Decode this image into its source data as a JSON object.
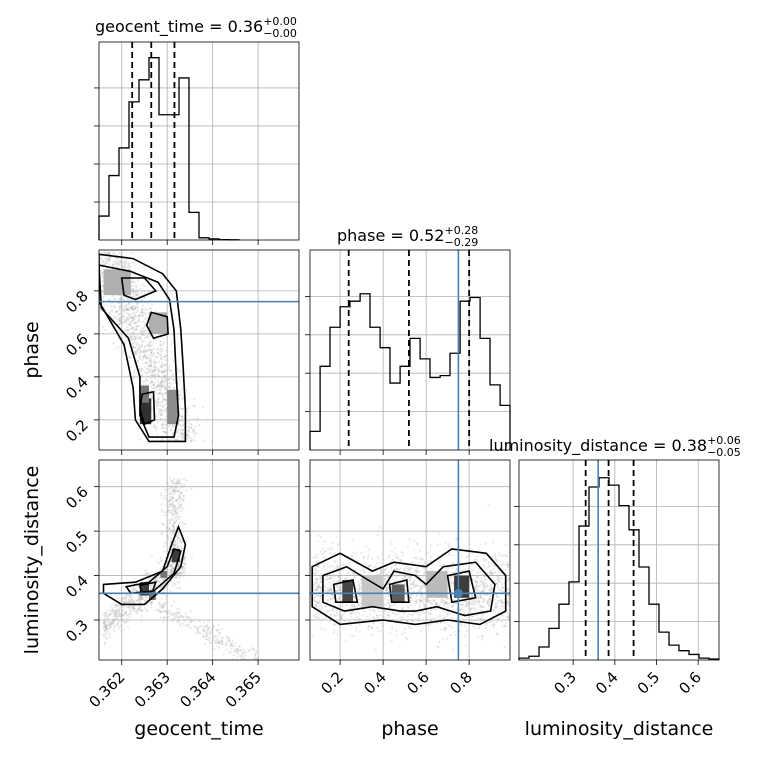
{
  "chart_data": {
    "type": "corner",
    "parameters": [
      "geocent_time",
      "phase",
      "luminosity_distance"
    ],
    "truths": {
      "geocent_time": null,
      "phase": 0.75,
      "luminosity_distance": 0.36
    },
    "colors": {
      "truth": "#4682b4",
      "line": "#000000",
      "grid": "#b0b0b0"
    },
    "axes": {
      "geocent_time": {
        "range": [
          0.3615,
          0.3659
        ],
        "ticks": [
          0.362,
          0.363,
          0.364,
          0.365
        ],
        "tick_labels": [
          "0.362",
          "0.363",
          "0.364",
          "0.365"
        ]
      },
      "phase": {
        "range": [
          0.06,
          0.99
        ],
        "ticks": [
          0.2,
          0.4,
          0.6,
          0.8
        ],
        "tick_labels": [
          "0.2",
          "0.4",
          "0.6",
          "0.8"
        ]
      },
      "luminosity_distance": {
        "range": [
          0.21,
          0.66
        ],
        "ticks": [
          0.3,
          0.4,
          0.5,
          0.6
        ],
        "tick_labels": [
          "0.3",
          "0.4",
          "0.5",
          "0.6"
        ]
      },
      "ld_hist_x": {
        "range": [
          0.17,
          0.65
        ],
        "ticks": [
          0.3,
          0.4,
          0.5,
          0.6
        ],
        "tick_labels": [
          "0.3",
          "0.4",
          "0.5",
          "0.6"
        ]
      }
    },
    "axis_labels": {
      "x0": "geocent_time",
      "x1": "phase",
      "x2": "luminosity_distance",
      "y1": "phase",
      "y2": "luminosity_distance"
    },
    "titles": [
      {
        "param": "geocent_time",
        "main": "geocent_time = 0.36",
        "plus": "+0.00",
        "minus": "−0.00"
      },
      {
        "param": "phase",
        "main": "phase = 0.52",
        "plus": "+0.28",
        "minus": "−0.29"
      },
      {
        "param": "luminosity_distance",
        "main": "luminosity_distance = 0.38",
        "plus": "+0.06",
        "minus": "−0.05"
      }
    ],
    "histograms": {
      "geocent_time": {
        "bin_edges": [
          0.3615,
          0.36172,
          0.36194,
          0.36216,
          0.36238,
          0.3626,
          0.36282,
          0.36304,
          0.36326,
          0.36348,
          0.3637,
          0.36392,
          0.36414,
          0.36436,
          0.36458
        ],
        "counts": [
          0.13,
          0.35,
          0.5,
          0.75,
          0.87,
          0.99,
          0.68,
          0.68,
          0.88,
          0.15,
          0.012,
          0.006,
          0.002,
          0.001
        ],
        "quantiles": [
          0.36223,
          0.36265,
          0.36316
        ]
      },
      "phase": {
        "bin_edges": [
          0.06,
          0.107,
          0.153,
          0.2,
          0.246,
          0.293,
          0.339,
          0.386,
          0.432,
          0.479,
          0.525,
          0.572,
          0.618,
          0.665,
          0.711,
          0.758,
          0.804,
          0.851,
          0.897,
          0.944,
          0.99
        ],
        "counts": [
          0.1,
          0.45,
          0.66,
          0.77,
          0.8,
          0.84,
          0.66,
          0.55,
          0.36,
          0.45,
          0.6,
          0.49,
          0.39,
          0.4,
          0.52,
          0.8,
          0.82,
          0.6,
          0.35,
          0.24
        ],
        "quantiles": [
          0.24,
          0.52,
          0.8
        ]
      },
      "luminosity_distance": {
        "bin_edges": [
          0.17,
          0.194,
          0.218,
          0.242,
          0.266,
          0.29,
          0.314,
          0.338,
          0.362,
          0.386,
          0.41,
          0.434,
          0.458,
          0.482,
          0.506,
          0.53,
          0.554,
          0.578,
          0.602,
          0.626,
          0.65
        ],
        "counts": [
          0.01,
          0.02,
          0.07,
          0.17,
          0.3,
          0.42,
          0.72,
          0.93,
          0.98,
          0.94,
          0.83,
          0.7,
          0.5,
          0.3,
          0.15,
          0.08,
          0.05,
          0.03,
          0.01,
          0.005
        ],
        "quantiles": [
          0.33,
          0.385,
          0.445
        ]
      }
    },
    "contours_2d": {
      "phase_vs_geocent_time": [
        [
          [
            0.3615,
            0.97
          ],
          [
            0.36225,
            0.95
          ],
          [
            0.3629,
            0.88
          ],
          [
            0.3632,
            0.8
          ],
          [
            0.3633,
            0.62
          ],
          [
            0.36335,
            0.45
          ],
          [
            0.3634,
            0.25
          ],
          [
            0.3634,
            0.1
          ],
          [
            0.3626,
            0.1
          ],
          [
            0.3623,
            0.2
          ],
          [
            0.36225,
            0.35
          ],
          [
            0.36205,
            0.55
          ],
          [
            0.3615,
            0.75
          ]
        ],
        [
          [
            0.3615,
            0.92
          ],
          [
            0.3622,
            0.89
          ],
          [
            0.3628,
            0.84
          ],
          [
            0.36305,
            0.76
          ],
          [
            0.36315,
            0.62
          ],
          [
            0.3632,
            0.4
          ],
          [
            0.36325,
            0.22
          ],
          [
            0.36315,
            0.12
          ],
          [
            0.3626,
            0.12
          ],
          [
            0.3624,
            0.22
          ],
          [
            0.3624,
            0.4
          ],
          [
            0.36215,
            0.58
          ],
          [
            0.36155,
            0.72
          ]
        ],
        [
          [
            0.362,
            0.86
          ],
          [
            0.3625,
            0.86
          ],
          [
            0.36275,
            0.8
          ],
          [
            0.3623,
            0.76
          ],
          [
            0.36205,
            0.78
          ]
        ],
        [
          [
            0.36265,
            0.7
          ],
          [
            0.363,
            0.68
          ],
          [
            0.36302,
            0.6
          ],
          [
            0.3627,
            0.58
          ],
          [
            0.36255,
            0.64
          ]
        ],
        [
          [
            0.36245,
            0.32
          ],
          [
            0.3627,
            0.33
          ],
          [
            0.36272,
            0.2
          ],
          [
            0.3625,
            0.18
          ],
          [
            0.3624,
            0.25
          ]
        ]
      ],
      "luminosity_distance_vs_geocent_time": [
        [
          [
            0.3616,
            0.38
          ],
          [
            0.3623,
            0.385
          ],
          [
            0.3629,
            0.41
          ],
          [
            0.3631,
            0.47
          ],
          [
            0.36325,
            0.51
          ],
          [
            0.3634,
            0.47
          ],
          [
            0.3633,
            0.42
          ],
          [
            0.3629,
            0.37
          ],
          [
            0.3625,
            0.335
          ],
          [
            0.362,
            0.335
          ],
          [
            0.3616,
            0.36
          ]
        ],
        [
          [
            0.3621,
            0.375
          ],
          [
            0.3626,
            0.385
          ],
          [
            0.363,
            0.42
          ],
          [
            0.36315,
            0.46
          ],
          [
            0.3633,
            0.455
          ],
          [
            0.36315,
            0.405
          ],
          [
            0.3627,
            0.365
          ],
          [
            0.3622,
            0.36
          ]
        ],
        [
          [
            0.3624,
            0.378
          ],
          [
            0.36275,
            0.385
          ],
          [
            0.36268,
            0.365
          ],
          [
            0.36243,
            0.362
          ]
        ]
      ],
      "luminosity_distance_vs_phase": [
        [
          [
            0.07,
            0.42
          ],
          [
            0.2,
            0.45
          ],
          [
            0.35,
            0.41
          ],
          [
            0.45,
            0.43
          ],
          [
            0.6,
            0.42
          ],
          [
            0.72,
            0.46
          ],
          [
            0.88,
            0.45
          ],
          [
            0.97,
            0.4
          ],
          [
            0.97,
            0.32
          ],
          [
            0.85,
            0.29
          ],
          [
            0.7,
            0.3
          ],
          [
            0.55,
            0.29
          ],
          [
            0.4,
            0.3
          ],
          [
            0.2,
            0.29
          ],
          [
            0.07,
            0.33
          ]
        ],
        [
          [
            0.12,
            0.4
          ],
          [
            0.23,
            0.42
          ],
          [
            0.33,
            0.39
          ],
          [
            0.4,
            0.37
          ],
          [
            0.45,
            0.41
          ],
          [
            0.55,
            0.4
          ],
          [
            0.6,
            0.38
          ],
          [
            0.68,
            0.42
          ],
          [
            0.83,
            0.43
          ],
          [
            0.92,
            0.38
          ],
          [
            0.9,
            0.32
          ],
          [
            0.78,
            0.31
          ],
          [
            0.65,
            0.33
          ],
          [
            0.55,
            0.32
          ],
          [
            0.48,
            0.32
          ],
          [
            0.35,
            0.33
          ],
          [
            0.22,
            0.32
          ],
          [
            0.12,
            0.34
          ]
        ],
        [
          [
            0.17,
            0.38
          ],
          [
            0.26,
            0.39
          ],
          [
            0.28,
            0.34
          ],
          [
            0.18,
            0.34
          ]
        ],
        [
          [
            0.43,
            0.38
          ],
          [
            0.51,
            0.39
          ],
          [
            0.52,
            0.34
          ],
          [
            0.44,
            0.34
          ]
        ],
        [
          [
            0.7,
            0.4
          ],
          [
            0.8,
            0.41
          ],
          [
            0.83,
            0.35
          ],
          [
            0.72,
            0.34
          ]
        ]
      ]
    },
    "density_blocks": {
      "phase_vs_geocent_time": [
        {
          "x": [
            0.3624,
            0.36265
          ],
          "y": [
            0.18,
            0.3
          ],
          "level": 0.9
        },
        {
          "x": [
            0.3624,
            0.3626
          ],
          "y": [
            0.28,
            0.36
          ],
          "level": 0.6
        },
        {
          "x": [
            0.363,
            0.36325
          ],
          "y": [
            0.18,
            0.34
          ],
          "level": 0.5
        },
        {
          "x": [
            0.3626,
            0.363
          ],
          "y": [
            0.6,
            0.7
          ],
          "level": 0.35
        },
        {
          "x": [
            0.3616,
            0.3622
          ],
          "y": [
            0.78,
            0.9
          ],
          "level": 0.35
        }
      ],
      "luminosity_distance_vs_geocent_time": [
        {
          "x": [
            0.3624,
            0.3626
          ],
          "y": [
            0.355,
            0.385
          ],
          "level": 0.85
        },
        {
          "x": [
            0.3626,
            0.36275
          ],
          "y": [
            0.345,
            0.365
          ],
          "level": 0.6
        },
        {
          "x": [
            0.3631,
            0.36328
          ],
          "y": [
            0.43,
            0.46
          ],
          "level": 0.85
        },
        {
          "x": [
            0.36285,
            0.363
          ],
          "y": [
            0.395,
            0.41
          ],
          "level": 0.6
        }
      ],
      "luminosity_distance_vs_phase": [
        {
          "x": [
            0.21,
            0.26
          ],
          "y": [
            0.34,
            0.39
          ],
          "level": 0.8
        },
        {
          "x": [
            0.44,
            0.5
          ],
          "y": [
            0.34,
            0.38
          ],
          "level": 0.7
        },
        {
          "x": [
            0.73,
            0.8
          ],
          "y": [
            0.35,
            0.4
          ],
          "level": 0.85
        },
        {
          "x": [
            0.6,
            0.7
          ],
          "y": [
            0.35,
            0.41
          ],
          "level": 0.3
        },
        {
          "x": [
            0.3,
            0.4
          ],
          "y": [
            0.33,
            0.4
          ],
          "level": 0.25
        }
      ]
    },
    "truth_point": {
      "phase": 0.75,
      "luminosity_distance": 0.36
    }
  }
}
